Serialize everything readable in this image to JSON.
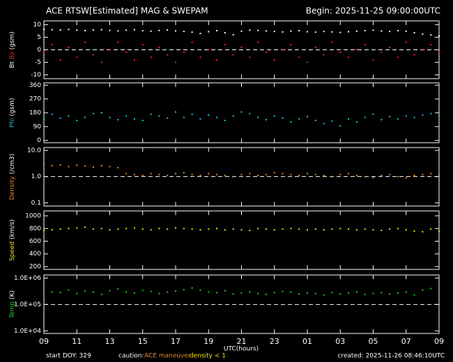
{
  "title": "ACE RTSW[Estimated] MAG & SWEPAM",
  "begin": "Begin: 2025-11-25 09:00:00UTC",
  "x_label": "UTC(hours)",
  "x_axis": {
    "xlim": [
      0,
      24
    ],
    "xticks": [
      {
        "value": 0,
        "label": "09"
      },
      {
        "value": 2,
        "label": "11"
      },
      {
        "value": 4,
        "label": "13"
      },
      {
        "value": 6,
        "label": "15"
      },
      {
        "value": 8,
        "label": "17"
      },
      {
        "value": 10,
        "label": "19"
      },
      {
        "value": 12,
        "label": "21"
      },
      {
        "value": 14,
        "label": "23"
      },
      {
        "value": 16,
        "label": "01"
      },
      {
        "value": 18,
        "label": "03"
      },
      {
        "value": 20,
        "label": "05"
      },
      {
        "value": 22,
        "label": "07"
      },
      {
        "value": 24,
        "label": "09"
      }
    ]
  },
  "footer": {
    "start": "start DOY: 329",
    "caution": "caution:",
    "maneuver": "ACE maneuver",
    "density": "density < 1",
    "created": "created: 2025-11-26 08:46:10UTC"
  },
  "chart_data": [
    {
      "type": "scatter",
      "y_unit": "(gsm)",
      "ylim": [
        -11.5,
        11.5
      ],
      "yticks": [
        10,
        5,
        0,
        -5,
        -10
      ],
      "hline": 0,
      "log_scale": false,
      "x": [
        0,
        0.5,
        1,
        1.5,
        2,
        2.5,
        3,
        3.5,
        4,
        4.5,
        5,
        5.5,
        6,
        6.5,
        7,
        7.5,
        8,
        8.5,
        9,
        9.5,
        10,
        10.5,
        11,
        11.5,
        12,
        12.5,
        13,
        13.5,
        14,
        14.5,
        15,
        15.5,
        16,
        16.5,
        17,
        17.5,
        18,
        18.5,
        19,
        19.5,
        20,
        20.5,
        21,
        21.5,
        22,
        22.5,
        23,
        23.5,
        24
      ],
      "series": [
        {
          "name": "Bt",
          "color": "#ffffff",
          "values": [
            8.2,
            8.0,
            7.9,
            8.1,
            7.8,
            7.6,
            7.9,
            8.0,
            7.7,
            7.5,
            7.8,
            8.0,
            7.6,
            7.4,
            7.7,
            7.9,
            7.5,
            7.3,
            7.0,
            6.5,
            7.2,
            7.6,
            6.8,
            6.0,
            7.4,
            7.8,
            7.7,
            7.5,
            7.3,
            7.1,
            7.4,
            7.6,
            7.2,
            7.0,
            7.3,
            7.1,
            6.9,
            7.2,
            7.4,
            7.6,
            7.8,
            7.5,
            7.3,
            7.6,
            7.4,
            6.8,
            6.2,
            5.9,
            5.5
          ]
        },
        {
          "name": "Bz",
          "color": "#ff2020",
          "values": [
            -1,
            2,
            -4,
            1,
            -3,
            3,
            -2,
            -5,
            0,
            3,
            -1,
            -4,
            2,
            -3,
            1,
            -2,
            -5,
            -1,
            3,
            -3,
            0,
            -4,
            2,
            -2,
            1,
            -3,
            3,
            -1,
            -4,
            0,
            2,
            -3,
            -5,
            1,
            -2,
            3,
            -1,
            -3,
            0,
            2,
            -4,
            -1,
            1,
            -3,
            3,
            -2,
            0,
            2,
            -1
          ]
        }
      ]
    },
    {
      "type": "scatter",
      "y_unit": "(gsm)",
      "ylim": [
        -15,
        375
      ],
      "yticks": [
        360,
        270,
        180,
        90,
        0
      ],
      "log_scale": false,
      "x": [
        0,
        0.5,
        1,
        1.5,
        2,
        2.5,
        3,
        3.5,
        4,
        4.5,
        5,
        5.5,
        6,
        6.5,
        7,
        7.5,
        8,
        8.5,
        9,
        9.5,
        10,
        10.5,
        11,
        11.5,
        12,
        12.5,
        13,
        13.5,
        14,
        14.5,
        15,
        15.5,
        16,
        16.5,
        17,
        17.5,
        18,
        18.5,
        19,
        19.5,
        20,
        20.5,
        21,
        21.5,
        22,
        22.5,
        23,
        23.5,
        24
      ],
      "series": [
        {
          "name": "Phi",
          "color": "#22c4e0",
          "values": [
            140,
            170,
            145,
            160,
            130,
            150,
            175,
            180,
            150,
            135,
            160,
            140,
            130,
            170,
            160,
            145,
            185,
            150,
            170,
            140,
            165,
            150,
            130,
            160,
            185,
            175,
            150,
            135,
            160,
            145,
            120,
            140,
            155,
            130,
            110,
            125,
            95,
            140,
            120,
            150,
            170,
            135,
            155,
            140,
            160,
            150,
            165,
            175,
            155
          ]
        }
      ]
    },
    {
      "type": "scatter",
      "y_unit": "(/cm3)",
      "ylim": [
        0.075,
        12.8
      ],
      "yticks": [
        {
          "value": 10,
          "label": "10.0"
        },
        {
          "value": 1,
          "label": "1.0"
        },
        0.1
      ],
      "hline": 1,
      "log_scale": true,
      "x": [
        0,
        0.5,
        1,
        1.5,
        2,
        2.5,
        3,
        3.5,
        4,
        4.5,
        5,
        5.5,
        6,
        6.5,
        7,
        7.5,
        8,
        8.5,
        9,
        9.5,
        10,
        10.5,
        11,
        11.5,
        12,
        12.5,
        13,
        13.5,
        14,
        14.5,
        15,
        15.5,
        16,
        16.5,
        17,
        17.5,
        18,
        18.5,
        19,
        19.5,
        20,
        20.5,
        21,
        21.5,
        22,
        22.5,
        23,
        23.5,
        24
      ],
      "series": [
        {
          "name": "Density",
          "color": "#f08c1e",
          "values": [
            3.0,
            2.6,
            2.8,
            2.4,
            2.7,
            2.5,
            2.3,
            2.6,
            2.4,
            2.2,
            1.3,
            1.2,
            1.1,
            1.3,
            1.2,
            1.1,
            1.3,
            1.4,
            1.2,
            1.1,
            1.3,
            1.2,
            1.1,
            1.0,
            1.2,
            1.3,
            1.1,
            1.2,
            1.4,
            1.3,
            1.2,
            1.1,
            1.3,
            1.2,
            1.1,
            1.0,
            1.2,
            1.3,
            1.1,
            1.0,
            0.9,
            1.1,
            1.2,
            1.0,
            0.9,
            1.1,
            1.2,
            1.3,
            1.1
          ]
        }
      ]
    },
    {
      "type": "scatter",
      "y_unit": "(km/s)",
      "ylim": [
        156,
        1077
      ],
      "yticks": [
        1000,
        800,
        600,
        400,
        200
      ],
      "log_scale": false,
      "x": [
        0,
        0.5,
        1,
        1.5,
        2,
        2.5,
        3,
        3.5,
        4,
        4.5,
        5,
        5.5,
        6,
        6.5,
        7,
        7.5,
        8,
        8.5,
        9,
        9.5,
        10,
        10.5,
        11,
        11.5,
        12,
        12.5,
        13,
        13.5,
        14,
        14.5,
        15,
        15.5,
        16,
        16.5,
        17,
        17.5,
        18,
        18.5,
        19,
        19.5,
        20,
        20.5,
        21,
        21.5,
        22,
        22.5,
        23,
        23.5,
        24
      ],
      "series": [
        {
          "name": "Speed",
          "color": "#f0e020",
          "values": [
            770,
            780,
            790,
            800,
            810,
            820,
            790,
            800,
            780,
            790,
            800,
            810,
            790,
            780,
            800,
            790,
            810,
            800,
            790,
            780,
            790,
            800,
            780,
            790,
            780,
            770,
            800,
            790,
            780,
            790,
            800,
            790,
            780,
            790,
            780,
            790,
            800,
            790,
            780,
            790,
            780,
            770,
            790,
            800,
            780,
            760,
            750,
            790,
            760
          ]
        }
      ]
    },
    {
      "type": "scatter",
      "y_unit": "(K)",
      "ylim": [
        8000,
        1300000
      ],
      "yticks": [
        {
          "value": 1000000,
          "label": "1.0E+06"
        },
        {
          "value": 100000,
          "label": "1.0E+05"
        },
        {
          "value": 10000,
          "label": "1.0E+04"
        }
      ],
      "hline": 100000,
      "log_scale": true,
      "x": [
        0,
        0.5,
        1,
        1.5,
        2,
        2.5,
        3,
        3.5,
        4,
        4.5,
        5,
        5.5,
        6,
        6.5,
        7,
        7.5,
        8,
        8.5,
        9,
        9.5,
        10,
        10.5,
        11,
        11.5,
        12,
        12.5,
        13,
        13.5,
        14,
        14.5,
        15,
        15.5,
        16,
        16.5,
        17,
        17.5,
        18,
        18.5,
        19,
        19.5,
        20,
        20.5,
        21,
        21.5,
        22,
        22.5,
        23,
        23.5,
        24
      ],
      "series": [
        {
          "name": "Temp",
          "color": "#20d020",
          "values": [
            250000,
            300000,
            280000,
            350000,
            260000,
            320000,
            290000,
            240000,
            330000,
            380000,
            300000,
            270000,
            340000,
            310000,
            260000,
            290000,
            320000,
            360000,
            420000,
            350000,
            300000,
            280000,
            330000,
            250000,
            270000,
            300000,
            260000,
            240000,
            280000,
            310000,
            290000,
            250000,
            270000,
            260000,
            230000,
            280000,
            250000,
            270000,
            300000,
            240000,
            260000,
            280000,
            250000,
            270000,
            290000,
            230000,
            350000,
            400000,
            300000
          ]
        }
      ]
    }
  ]
}
